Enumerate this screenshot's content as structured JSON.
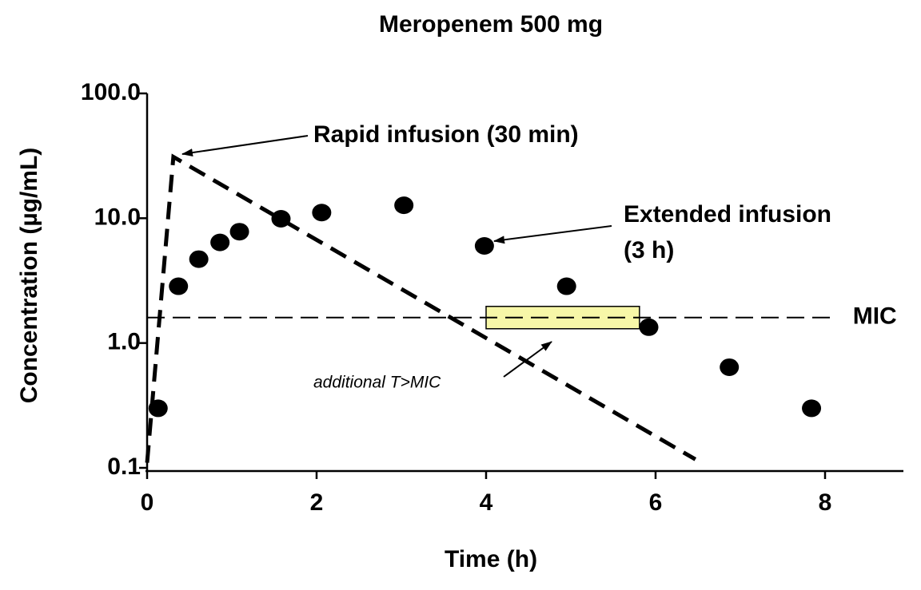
{
  "chart_data": {
    "type": "scatter",
    "title": "Meropenem 500 mg",
    "x_label": "Time (h)",
    "y_label": "Concentration (µg/mL)",
    "log_y": true,
    "xlim": [
      0,
      9
    ],
    "ylim": [
      0.1,
      100
    ],
    "xticks": [
      0,
      2,
      4,
      6,
      8
    ],
    "yticks": [
      {
        "value": 100,
        "label": "100.0"
      },
      {
        "value": 10,
        "label": "10.0"
      },
      {
        "value": 1,
        "label": "1.0"
      },
      0.1
    ],
    "series": [
      {
        "type": "line",
        "dashed": true,
        "color": "#000000",
        "x": [
          0,
          0.31,
          6.47
        ],
        "values": [
          0.11,
          31,
          0.117
        ]
      },
      {
        "type": "scatter",
        "color": "#000000",
        "x": [
          0.13,
          0.37,
          0.61,
          0.86,
          1.09,
          1.58,
          2.06,
          3.03,
          3.98,
          4.95,
          5.92,
          6.87,
          7.84
        ],
        "values": [
          0.3,
          2.85,
          4.7,
          6.4,
          7.8,
          9.9,
          11.1,
          12.7,
          6.0,
          2.85,
          1.34,
          0.64,
          0.3
        ]
      }
    ],
    "reference_line": {
      "value": 1.6,
      "label": "MIC",
      "x_end": 8.12
    },
    "highlight": {
      "x": [
        4.0,
        5.81
      ],
      "color": "#f7f7a8"
    },
    "annotations": {
      "rapid": "Rapid infusion (30 min)",
      "extended": [
        "Extended infusion",
        "(3 h)"
      ],
      "tmic": "additional T>MIC"
    }
  }
}
